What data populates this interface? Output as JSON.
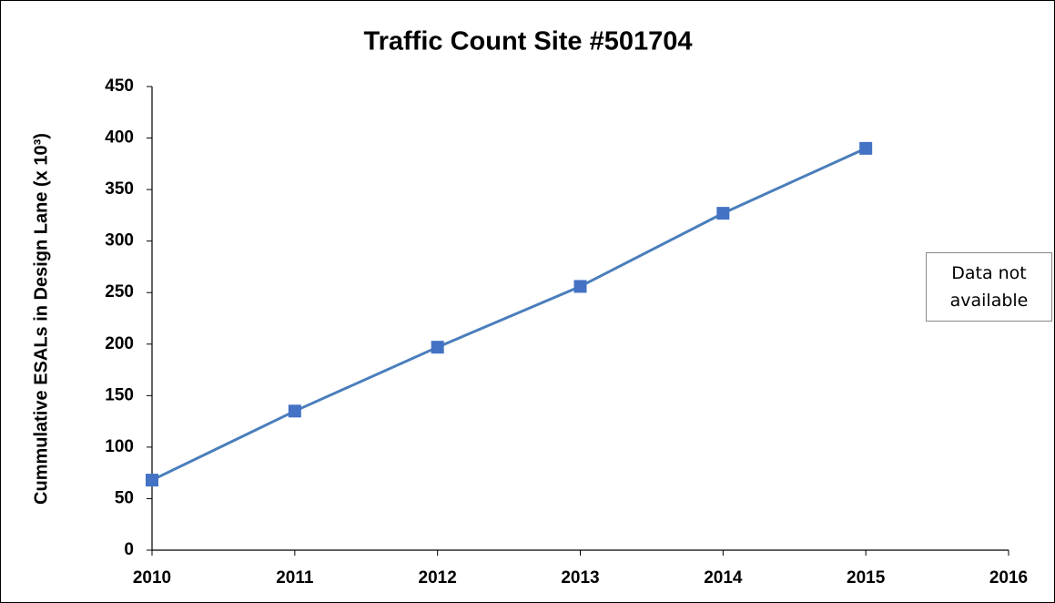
{
  "chart_data": {
    "type": "line",
    "title": "Traffic Count Site #501704",
    "y_label": "Cummulative ESALs in Design Lane (x 10³)",
    "annotation": "Data not available",
    "x": [
      2010,
      2011,
      2012,
      2013,
      2014,
      2015
    ],
    "series": [
      {
        "name": "ESALs",
        "color": "#4a7ebb",
        "values": [
          68,
          135,
          197,
          256,
          327,
          390
        ]
      }
    ],
    "xlim": [
      2010,
      2016
    ],
    "xticks": [
      2010,
      2011,
      2012,
      2013,
      2014,
      2015,
      2016
    ],
    "ylim": [
      0,
      450
    ],
    "yticks": [
      0,
      50,
      100,
      150,
      200,
      250,
      300,
      350,
      400,
      450
    ],
    "grid": false
  }
}
